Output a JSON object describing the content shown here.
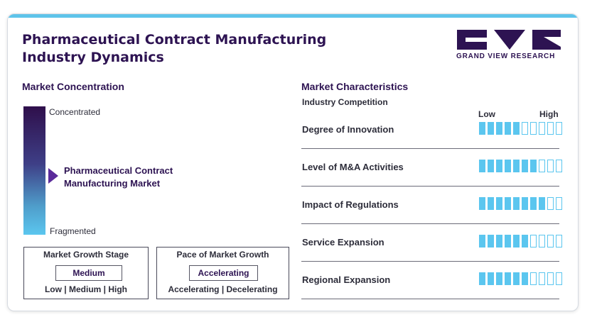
{
  "title_lines": [
    "Pharmaceutical Contract Manufacturing",
    "Industry Dynamics"
  ],
  "logo": {
    "text": "GRAND VIEW RESEARCH"
  },
  "colors": {
    "accent": "#5ec4ea",
    "primary": "#2d1352",
    "bar": "#5bc6ef",
    "marker": "#5a2a9a"
  },
  "market_concentration": {
    "title": "Market Concentration",
    "top_label": "Concentrated",
    "bottom_label": "Fragmented",
    "marker_label_lines": [
      "Pharmaceutical Contract",
      "Manufacturing Market"
    ],
    "marker_level": 0.5
  },
  "growth_stage": {
    "title": "Market Growth Stage",
    "value": "Medium",
    "options": [
      "Low",
      "Medium",
      "High"
    ],
    "options_text": "Low | Medium | High"
  },
  "growth_pace": {
    "title": "Pace of Market Growth",
    "value": "Accelerating",
    "options": [
      "Accelerating",
      "Decelerating"
    ],
    "options_text": "Accelerating | Decelerating"
  },
  "market_characteristics": {
    "title": "Market Characteristics",
    "subtitle": "Industry Competition",
    "scale_low": "Low",
    "scale_high": "High",
    "max_level": 10,
    "rows": [
      {
        "label": "Degree of Innovation",
        "level": 5
      },
      {
        "label": "Level of M&A Activities",
        "level": 7
      },
      {
        "label": "Impact of Regulations",
        "level": 8
      },
      {
        "label": "Service Expansion",
        "level": 6
      },
      {
        "label": "Regional Expansion",
        "level": 6
      }
    ]
  }
}
